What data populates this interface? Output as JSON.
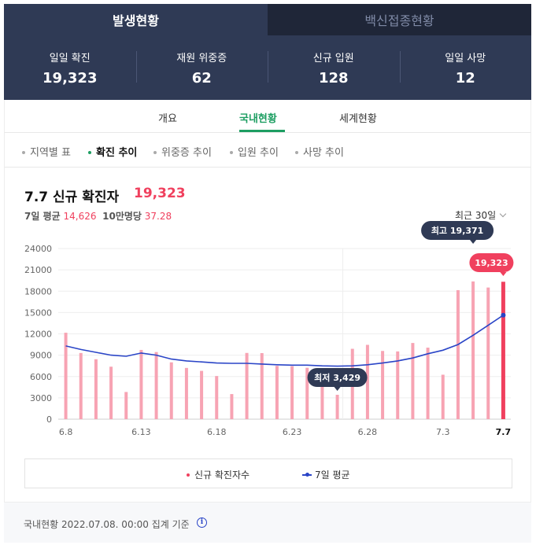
{
  "tabs": [
    {
      "label": "발생현황"
    },
    {
      "label": "백신접종현황"
    }
  ],
  "stats": [
    {
      "label": "일일 확진",
      "value": "19,323"
    },
    {
      "label": "재원 위중증",
      "value": "62"
    },
    {
      "label": "신규 입원",
      "value": "128"
    },
    {
      "label": "일일 사망",
      "value": "12"
    }
  ],
  "subnav": [
    "개요",
    "국내현황",
    "세계현황"
  ],
  "filters": [
    "지역별 표",
    "확진 추이",
    "위중증 추이",
    "입원 추이",
    "사망 추이"
  ],
  "header": {
    "title": "7.7 신규 확진자",
    "value": "19,323",
    "avg_label": "7일 평균",
    "avg_value": "14,626",
    "per100k_label": "10만명당",
    "per100k_value": "37.28",
    "range": "최근 30일"
  },
  "colors": {
    "bar": "#f7a3b3",
    "bar_last": "#f0405e",
    "line": "#2a45c7",
    "navy": "#2f3a55",
    "accent_green": "#1d9e62"
  },
  "chart_data": {
    "type": "bar",
    "x": [
      "6.8",
      "6.9",
      "6.10",
      "6.11",
      "6.12",
      "6.13",
      "6.14",
      "6.15",
      "6.16",
      "6.17",
      "6.18",
      "6.19",
      "6.20",
      "6.21",
      "6.22",
      "6.23",
      "6.24",
      "6.25",
      "6.26",
      "6.27",
      "6.28",
      "6.29",
      "6.30",
      "7.1",
      "7.2",
      "7.3",
      "7.4",
      "7.5",
      "7.6",
      "7.7"
    ],
    "xticks": [
      "6.8",
      "6.13",
      "6.18",
      "6.23",
      "6.28",
      "7.3",
      "7.7"
    ],
    "series": [
      {
        "name": "신규 확진자수",
        "values": [
          12155,
          9306,
          8430,
          7380,
          3823,
          9738,
          9437,
          7995,
          7206,
          6793,
          6068,
          3530,
          9315,
          9293,
          7497,
          7455,
          7228,
          6246,
          3429,
          9896,
          10452,
          9595,
          9528,
          10715,
          10059,
          6253,
          18147,
          19371,
          18511,
          19323
        ]
      },
      {
        "name": "7일 평균",
        "values": [
          10300,
          9800,
          9400,
          9000,
          8850,
          9300,
          9000,
          8450,
          8200,
          8050,
          7900,
          7850,
          7850,
          7750,
          7650,
          7600,
          7600,
          7500,
          7450,
          7500,
          7650,
          7900,
          8200,
          8600,
          9200,
          9700,
          10500,
          11800,
          13200,
          14626
        ]
      }
    ],
    "yticks": [
      0,
      3000,
      6000,
      9000,
      12000,
      15000,
      18000,
      21000,
      24000
    ],
    "ylim": [
      0,
      24000
    ],
    "annotations": {
      "max_label": "최고 19,371",
      "min_label": "최저 3,429",
      "last_label": "19,323"
    }
  },
  "legend": {
    "bar": "신규 확진자수",
    "line": "7일 평균"
  },
  "footer": {
    "text": "국내현황 2022.07.08. 00:00 집계 기준",
    "info_icon": "i"
  }
}
